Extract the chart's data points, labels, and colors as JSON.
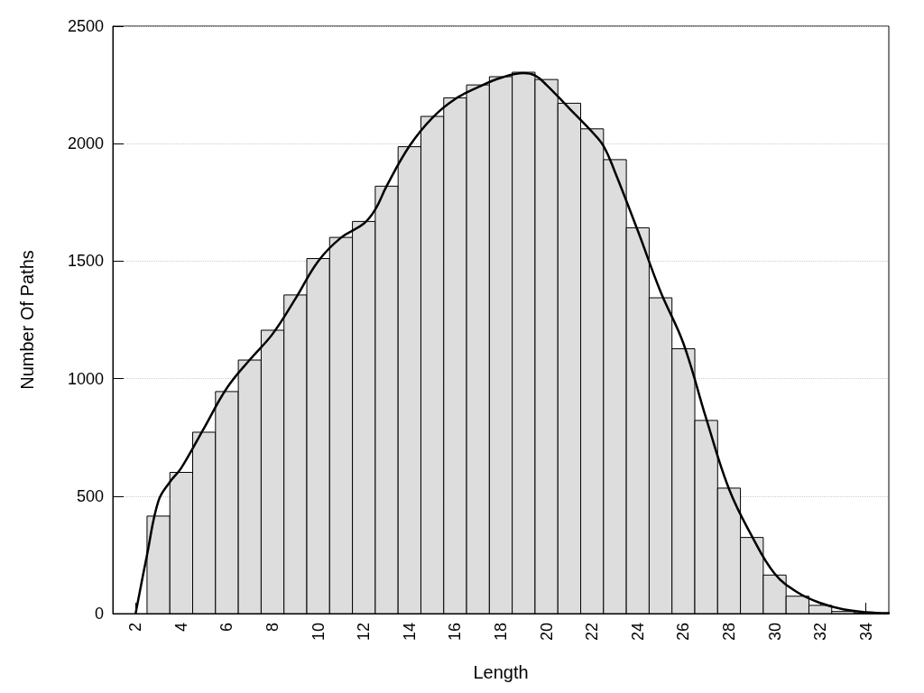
{
  "chart_data": {
    "type": "histogram",
    "xlabel": "Length",
    "ylabel": "Number Of Paths",
    "xlim": [
      1,
      35
    ],
    "xticks": [
      2,
      4,
      6,
      8,
      10,
      12,
      14,
      16,
      18,
      20,
      22,
      24,
      26,
      28,
      30,
      32,
      34
    ],
    "ylim": [
      0,
      2500
    ],
    "yticks": [
      0,
      500,
      1000,
      1500,
      2000,
      2500
    ],
    "grid": "y",
    "series": [
      {
        "color": "#dddddd",
        "bins": [
          2.5,
          3.5,
          4.5,
          5.5,
          6.5,
          7.5,
          8.5,
          9.5,
          10.5,
          11.5,
          12.5,
          13.5,
          14.5,
          15.5,
          16.5,
          17.5,
          18.5,
          19.5,
          20.5,
          21.5,
          22.5,
          23.5,
          24.5,
          25.5,
          26.5,
          27.5,
          28.5,
          29.5,
          30.5,
          31.5,
          32.5,
          33.5,
          34.5
        ],
        "values": [
          415,
          601,
          772,
          945,
          1079,
          1206,
          1356,
          1511,
          1601,
          1669,
          1819,
          1987,
          2116,
          2195,
          2250,
          2285,
          2304,
          2273,
          2172,
          2063,
          1932,
          1642,
          1344,
          1127,
          822,
          534,
          324,
          164,
          74,
          35,
          9,
          3
        ]
      },
      {
        "type": "line",
        "color": "#000000",
        "marker": "none",
        "line_style": "solid",
        "x": [
          2,
          2.5,
          3,
          3.5,
          4,
          5,
          6,
          7,
          8,
          9,
          10,
          11,
          12,
          12.5,
          13,
          14,
          15,
          16,
          17,
          18,
          19,
          19.5,
          20,
          21,
          22,
          22.5,
          23,
          24,
          25,
          26,
          27,
          28,
          29,
          30,
          31,
          32,
          33,
          34,
          35
        ],
        "values": [
          0,
          250,
          480,
          560,
          620,
          790,
          960,
          1080,
          1190,
          1340,
          1500,
          1600,
          1660,
          1720,
          1820,
          1990,
          2110,
          2190,
          2240,
          2280,
          2300,
          2290,
          2250,
          2150,
          2050,
          1990,
          1880,
          1630,
          1370,
          1150,
          830,
          530,
          330,
          170,
          90,
          45,
          18,
          6,
          2
        ]
      }
    ]
  }
}
